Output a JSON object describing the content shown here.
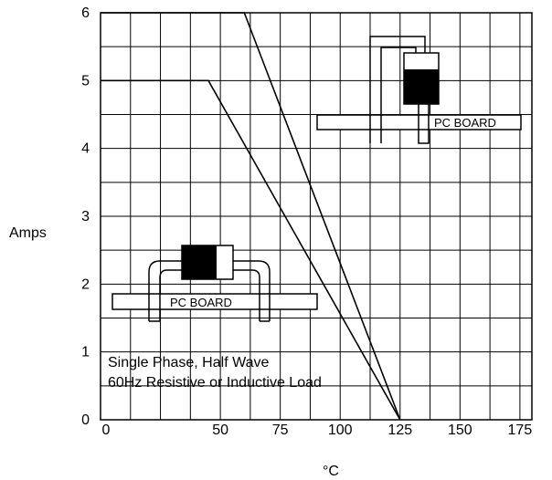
{
  "chart_data": {
    "type": "line",
    "title": "",
    "xlabel": "°C",
    "ylabel": "Amps",
    "xlim": [
      0,
      180
    ],
    "ylim": [
      0,
      6
    ],
    "x_ticks": [
      {
        "value": 0,
        "label": "0"
      },
      {
        "value": 50,
        "label": "50"
      },
      {
        "value": 75,
        "label": "75"
      },
      {
        "value": 100,
        "label": "100"
      },
      {
        "value": 125,
        "label": "125"
      },
      {
        "value": 150,
        "label": "150"
      },
      {
        "value": 175,
        "label": "175"
      }
    ],
    "y_ticks": [
      0,
      1,
      2,
      3,
      4,
      5,
      6
    ],
    "grid": true,
    "series": [
      {
        "x": [
          0,
          60,
          125
        ],
        "y": [
          6,
          6,
          0
        ]
      },
      {
        "x": [
          0,
          45,
          125
        ],
        "y": [
          5,
          5,
          0
        ]
      }
    ],
    "annotations": [
      "Single Phase, Half Wave",
      "60Hz Resistive or Inductive Load"
    ],
    "insets": [
      {
        "label": "PC BOARD"
      },
      {
        "label": "PC BOARD"
      }
    ]
  }
}
